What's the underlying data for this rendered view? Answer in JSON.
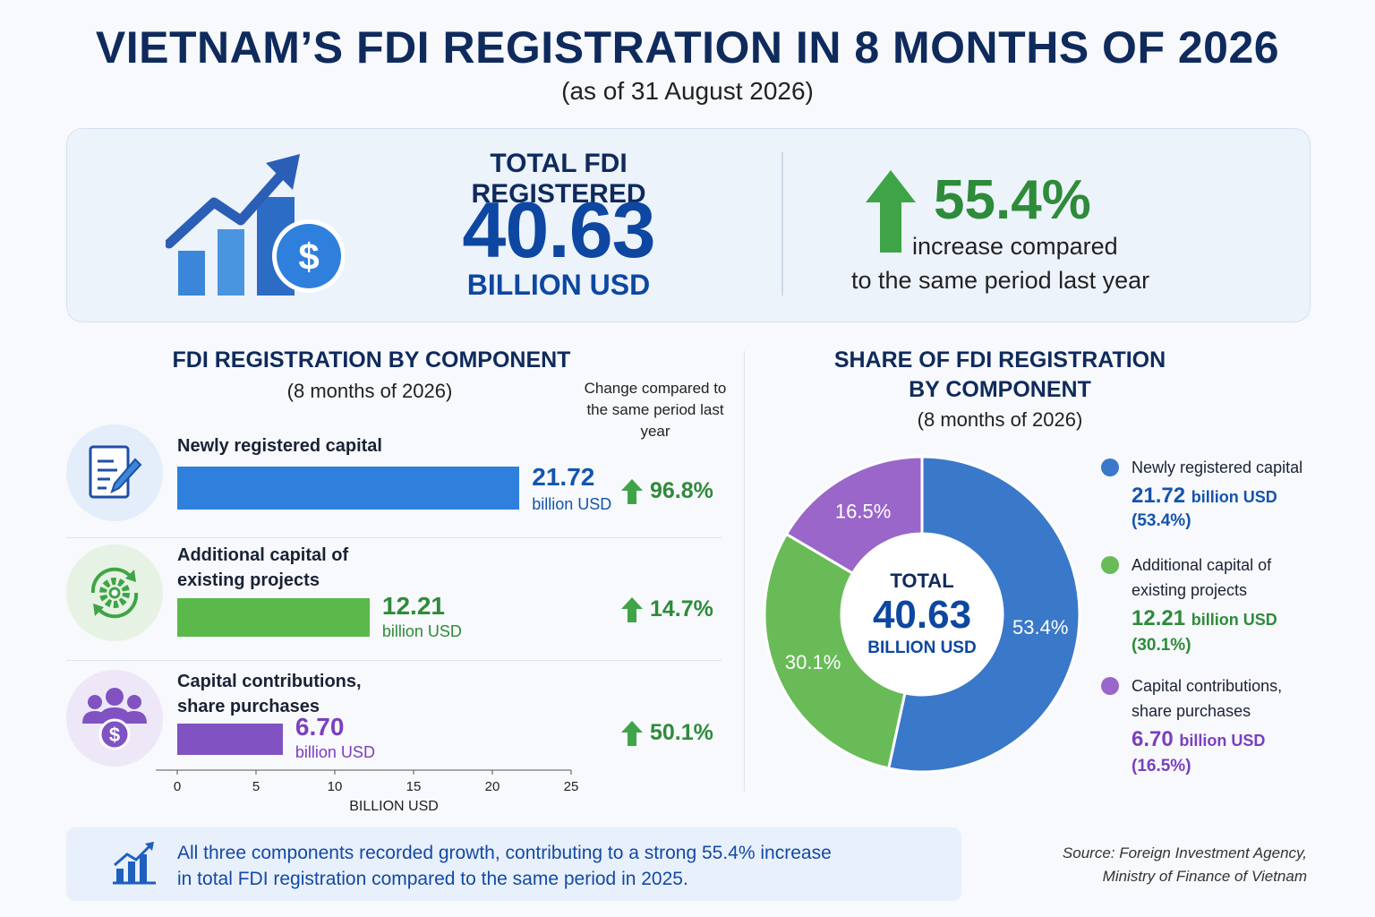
{
  "header": {
    "title": "VIETNAM’S FDI REGISTRATION IN 8 MONTHS OF 2026",
    "subtitle": "(as of 31 August 2026)"
  },
  "summary": {
    "total_label": "TOTAL FDI REGISTERED",
    "total_value": "40.63",
    "total_unit": "BILLION USD",
    "increase_pct": "55.4%",
    "increase_text_1": "increase compared",
    "increase_text_2": "to the same period last year",
    "icon": "growth-chart-dollar-icon"
  },
  "component_section": {
    "title": "FDI REGISTRATION BY COMPONENT",
    "subtitle": "(8 months of 2026)",
    "change_header": "Change compared to the same period last year",
    "axis_label": "BILLION USD"
  },
  "share_section": {
    "title_line1": "SHARE OF FDI REGISTRATION",
    "title_line2": "BY COMPONENT",
    "subtitle": "(8 months of 2026)",
    "center_label": "TOTAL",
    "center_value": "40.63",
    "center_unit": "BILLION USD"
  },
  "components": [
    {
      "label_line1": "Newly registered capital",
      "label_line2": "",
      "legend_line1": "Newly registered capital",
      "legend_line2": "",
      "value_text": "21.72",
      "unit": "billion USD",
      "change": "96.8%",
      "share_text": "53.4%",
      "share_paren": "(53.4%)",
      "icon": "document-pen-icon"
    },
    {
      "label_line1": "Additional capital of",
      "label_line2": "existing projects",
      "legend_line1": "Additional capital of",
      "legend_line2": "existing projects",
      "value_text": "12.21",
      "unit": "billion USD",
      "change": "14.7%",
      "share_text": "30.1%",
      "share_paren": "(30.1%)",
      "icon": "gear-cycle-icon"
    },
    {
      "label_line1": "Capital contributions,",
      "label_line2": "share purchases",
      "legend_line1": "Capital contributions,",
      "legend_line2": "share purchases",
      "value_text": "6.70",
      "unit": "billion USD",
      "change": "50.1%",
      "share_text": "16.5%",
      "share_paren": "(16.5%)",
      "icon": "people-dollar-icon"
    }
  ],
  "chart_data": [
    {
      "type": "bar",
      "orientation": "horizontal",
      "title": "FDI REGISTRATION BY COMPONENT",
      "subtitle": "(8 months of 2026)",
      "categories": [
        "Newly registered capital",
        "Additional capital of existing projects",
        "Capital contributions, share purchases"
      ],
      "values": [
        21.72,
        12.21,
        6.7
      ],
      "change_pct": [
        96.8,
        14.7,
        50.1
      ],
      "xlabel": "BILLION USD",
      "xlim": [
        0,
        25
      ],
      "xticks": [
        0,
        5,
        10,
        15,
        20,
        25
      ],
      "colors": [
        "#2f80dd",
        "#5ab94a",
        "#8052c2"
      ],
      "grid": false
    },
    {
      "type": "pie",
      "style": "donut",
      "title": "SHARE OF FDI REGISTRATION BY COMPONENT",
      "subtitle": "(8 months of 2026)",
      "categories": [
        "Newly registered capital",
        "Additional capital of existing projects",
        "Capital contributions, share purchases"
      ],
      "values": [
        53.4,
        30.1,
        16.5
      ],
      "absolute_values": [
        21.72,
        12.21,
        6.7
      ],
      "total": 40.63,
      "colors": [
        "#3a78c9",
        "#69bb58",
        "#9a66c9"
      ],
      "legend_position": "right"
    }
  ],
  "colors": {
    "navy": "#0f2a5c",
    "blue": "#0d47a1",
    "green": "#2e8b3a",
    "purple": "#7b3fbf",
    "bar_blue": "#2f80dd",
    "bar_green": "#5ab94a",
    "bar_purple": "#8052c2"
  },
  "footer": {
    "note_line1": "All three components recorded growth, contributing to a strong 55.4% increase",
    "note_line2": "in total FDI registration compared to the same period in 2025.",
    "source_line1": "Source: Foreign Investment Agency,",
    "source_line2": "Ministry of Finance of Vietnam",
    "note_icon": "bar-chart-trend-icon"
  }
}
